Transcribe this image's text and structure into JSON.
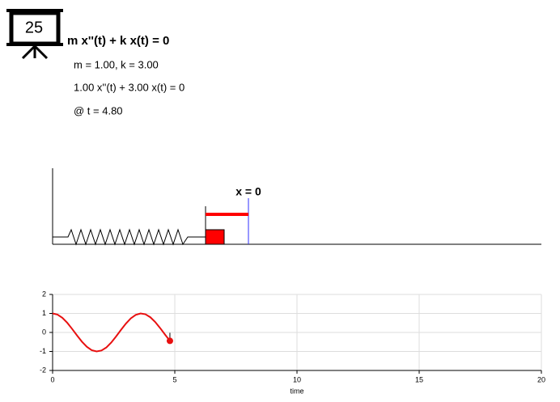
{
  "header": {
    "badge": "25",
    "equation": "m x''(t) + k x(t) = 0",
    "params": "m = 1.00, k = 3.00",
    "instance": "1.00 x''(t) + 3.00 x(t) = 0",
    "time": "@ t = 4.80"
  },
  "diagram": {
    "origin_label": "x = 0"
  },
  "chart_data": {
    "type": "line",
    "x_label": "time",
    "x": [
      0,
      0.2,
      0.4,
      0.6,
      0.8,
      1.0,
      1.2,
      1.4,
      1.6,
      1.8,
      2.0,
      2.2,
      2.4,
      2.6,
      2.8,
      3.0,
      3.2,
      3.4,
      3.6,
      3.8,
      4.0,
      4.2,
      4.4,
      4.6,
      4.8
    ],
    "series": [
      {
        "color": "#e81010",
        "values": [
          1,
          0.941,
          0.769,
          0.507,
          0.184,
          -0.161,
          -0.486,
          -0.754,
          -0.933,
          -1.0,
          -0.951,
          -0.792,
          -0.531,
          -0.208,
          0.137,
          0.466,
          0.741,
          0.925,
          0.999,
          0.956,
          0.799,
          0.548,
          0.231,
          -0.113,
          -0.444
        ]
      }
    ],
    "marker": {
      "x": 4.8,
      "y": -0.444,
      "color": "#e81010"
    },
    "xlim": [
      0,
      20
    ],
    "xticks": [
      0,
      5,
      10,
      15,
      20
    ],
    "ylim": [
      -2,
      2
    ],
    "yticks": [
      -2,
      -1,
      0,
      1,
      2
    ],
    "grid": true
  }
}
